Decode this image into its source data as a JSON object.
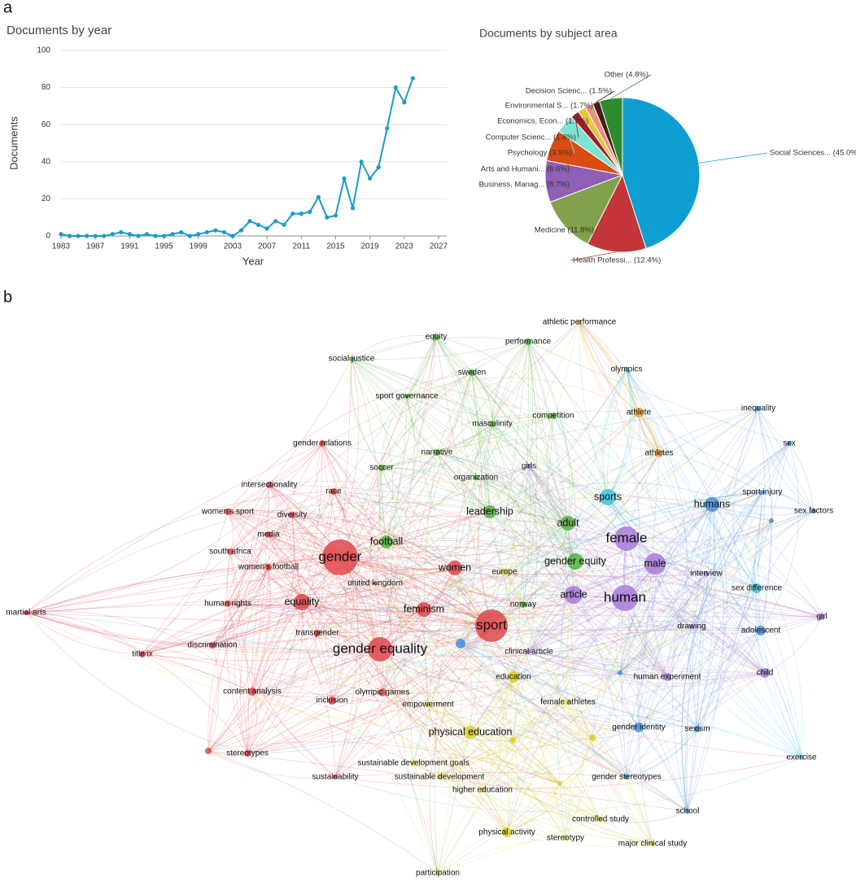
{
  "panels": {
    "a": "a",
    "b": "b"
  },
  "chart_data": [
    {
      "type": "line",
      "title": "Documents by year",
      "xlabel": "Year",
      "ylabel": "Documents",
      "color": "#1a9cc7",
      "grid": true,
      "x": [
        1983,
        1984,
        1985,
        1986,
        1987,
        1988,
        1989,
        1990,
        1991,
        1992,
        1993,
        1994,
        1995,
        1996,
        1997,
        1998,
        1999,
        2000,
        2001,
        2002,
        2003,
        2004,
        2005,
        2006,
        2007,
        2008,
        2009,
        2010,
        2011,
        2012,
        2013,
        2014,
        2015,
        2016,
        2017,
        2018,
        2019,
        2020,
        2021,
        2022,
        2023,
        2024
      ],
      "values": [
        1,
        0,
        0,
        0,
        0,
        0,
        1,
        2,
        1,
        0,
        1,
        0,
        0,
        1,
        2,
        0,
        1,
        2,
        3,
        2,
        0,
        3,
        8,
        6,
        4,
        8,
        6,
        12,
        12,
        13,
        21,
        10,
        11,
        31,
        15,
        40,
        31,
        37,
        58,
        80,
        72,
        85
      ],
      "xlim": [
        1983,
        2027
      ],
      "xticks": [
        1983,
        1987,
        1991,
        1995,
        1999,
        2003,
        2007,
        2011,
        2015,
        2019,
        2023,
        2027
      ],
      "ylim": [
        0,
        100
      ],
      "yticks": [
        0,
        20,
        40,
        60,
        80,
        100
      ]
    },
    {
      "type": "pie",
      "title": "Documents by subject area",
      "categories": [
        "Social Sciences... (45.0%)",
        "Health Professi... (12.4%)",
        "Medicine (11.8%)",
        "Business, Manag... (8.7%)",
        "Arts and Humani... (6.6%)",
        "Psychology (3.9%)",
        "Computer Scienc... (1.8%)",
        "Economics, Econ... (1.7%)",
        "Environmental S... (1.7%)",
        "Decision Scienc... (1.5%)",
        "Other (4.8%)"
      ],
      "values": [
        45.0,
        12.4,
        11.8,
        8.7,
        6.6,
        3.9,
        1.8,
        1.7,
        1.7,
        1.5,
        4.8
      ],
      "colors": [
        "#0e9ed2",
        "#c4363a",
        "#82a14e",
        "#8e5fb5",
        "#d94d12",
        "#7de3d3",
        "#a21d28",
        "#e8c53a",
        "#e9937d",
        "#4a1a1a",
        "#2e8b2e"
      ]
    }
  ],
  "network": {
    "nodes": [
      {
        "label": "gender",
        "color": "#e0474c"
      },
      {
        "label": "gender equality",
        "color": "#e0474c"
      },
      {
        "label": "equality",
        "color": "#e0474c"
      },
      {
        "label": "feminism",
        "color": "#e0474c"
      },
      {
        "label": "women",
        "color": "#e0474c"
      },
      {
        "label": "sport",
        "color": "#e0474c"
      },
      {
        "label": "united kingdom",
        "color": "#e0474c"
      },
      {
        "label": "gender relations",
        "color": "#e0474c"
      },
      {
        "label": "intersectionality",
        "color": "#e0474c"
      },
      {
        "label": "race",
        "color": "#e0474c"
      },
      {
        "label": "women's sport",
        "color": "#e0474c"
      },
      {
        "label": "diversity",
        "color": "#e0474c"
      },
      {
        "label": "media",
        "color": "#e0474c"
      },
      {
        "label": "south africa",
        "color": "#e0474c"
      },
      {
        "label": "women's football",
        "color": "#e0474c"
      },
      {
        "label": "human rights",
        "color": "#e0474c"
      },
      {
        "label": "transgender",
        "color": "#e0474c"
      },
      {
        "label": "discrimination",
        "color": "#e0474c"
      },
      {
        "label": "title ix",
        "color": "#e0474c"
      },
      {
        "label": "martial arts",
        "color": "#e0474c"
      },
      {
        "label": "content analysis",
        "color": "#e0474c"
      },
      {
        "label": "inclusion",
        "color": "#e0474c"
      },
      {
        "label": "olympic games",
        "color": "#e0474c"
      },
      {
        "label": "stereotypes",
        "color": "#e0474c"
      },
      {
        "label": "sustainability",
        "color": "#e0474c"
      },
      {
        "label": "equity",
        "color": "#52b03f"
      },
      {
        "label": "performance",
        "color": "#52b03f"
      },
      {
        "label": "social justice",
        "color": "#52b03f"
      },
      {
        "label": "sweden",
        "color": "#52b03f"
      },
      {
        "label": "sport governance",
        "color": "#52b03f"
      },
      {
        "label": "competition",
        "color": "#52b03f"
      },
      {
        "label": "masculinity",
        "color": "#52b03f"
      },
      {
        "label": "narrative",
        "color": "#52b03f"
      },
      {
        "label": "soccer",
        "color": "#52b03f"
      },
      {
        "label": "organization",
        "color": "#52b03f"
      },
      {
        "label": "leadership",
        "color": "#52b03f"
      },
      {
        "label": "football",
        "color": "#52b03f"
      },
      {
        "label": "adult",
        "color": "#52b03f"
      },
      {
        "label": "gender equity",
        "color": "#52b03f"
      },
      {
        "label": "norway",
        "color": "#52b03f"
      },
      {
        "label": "athletic performance",
        "color": "#f0a030"
      },
      {
        "label": "athlete",
        "color": "#f0a030"
      },
      {
        "label": "athletes",
        "color": "#f0a030"
      },
      {
        "label": "olympics",
        "color": "#3ec6db"
      },
      {
        "label": "sports",
        "color": "#3ec6db"
      },
      {
        "label": "sex difference",
        "color": "#3ec6db"
      },
      {
        "label": "exercise",
        "color": "#3ec6db"
      },
      {
        "label": "inequality",
        "color": "#4a8fd6"
      },
      {
        "label": "sex",
        "color": "#4a8fd6"
      },
      {
        "label": "humans",
        "color": "#4a8fd6"
      },
      {
        "label": "sport injury",
        "color": "#4a8fd6"
      },
      {
        "label": "sex factors",
        "color": "#4a8fd6"
      },
      {
        "label": "adolescent",
        "color": "#4a8fd6"
      },
      {
        "label": "gender identity",
        "color": "#4a8fd6"
      },
      {
        "label": "sexism",
        "color": "#4a8fd6"
      },
      {
        "label": "gender stereotypes",
        "color": "#4a8fd6"
      },
      {
        "label": "school",
        "color": "#4a8fd6"
      },
      {
        "label": "girls",
        "color": "#a97ad8"
      },
      {
        "label": "female",
        "color": "#a97ad8"
      },
      {
        "label": "male",
        "color": "#a97ad8"
      },
      {
        "label": "article",
        "color": "#a97ad8"
      },
      {
        "label": "human",
        "color": "#a97ad8"
      },
      {
        "label": "interview",
        "color": "#a97ad8"
      },
      {
        "label": "drawing",
        "color": "#a97ad8"
      },
      {
        "label": "girl",
        "color": "#a97ad8"
      },
      {
        "label": "human experiment",
        "color": "#a97ad8"
      },
      {
        "label": "child",
        "color": "#a97ad8"
      },
      {
        "label": "clinical article",
        "color": "#a97ad8"
      },
      {
        "label": "europe",
        "color": "#d8d12a"
      },
      {
        "label": "education",
        "color": "#d8d12a"
      },
      {
        "label": "empowerment",
        "color": "#d8d12a"
      },
      {
        "label": "female athletes",
        "color": "#d8d12a"
      },
      {
        "label": "physical education",
        "color": "#d8d12a"
      },
      {
        "label": "sustainable development goals",
        "color": "#d8d12a"
      },
      {
        "label": "sustainable development",
        "color": "#d8d12a"
      },
      {
        "label": "higher education",
        "color": "#d8d12a"
      },
      {
        "label": "controlled study",
        "color": "#d8d12a"
      },
      {
        "label": "physical activity",
        "color": "#d8d12a"
      },
      {
        "label": "stereotypy",
        "color": "#d8d12a"
      },
      {
        "label": "major clinical study",
        "color": "#d8d12a"
      },
      {
        "label": "participation",
        "color": "#d8d12a"
      }
    ]
  }
}
